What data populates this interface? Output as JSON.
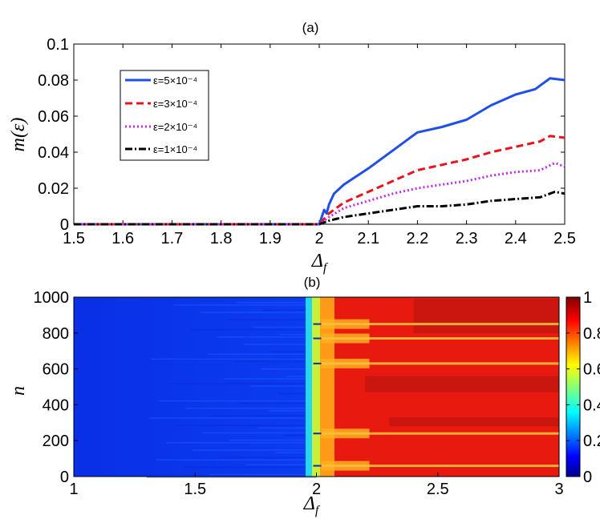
{
  "chart_data": [
    {
      "type": "line",
      "title": "(a)",
      "xlabel": "Δf",
      "ylabel": "m(ε)",
      "xlim": [
        1.5,
        2.5
      ],
      "ylim": [
        0,
        0.1
      ],
      "xticks": [
        "1.5",
        "1.6",
        "1.7",
        "1.8",
        "1.9",
        "2",
        "2.1",
        "2.2",
        "2.3",
        "2.4",
        "2.5"
      ],
      "yticks": [
        "0",
        "0.02",
        "0.04",
        "0.06",
        "0.08",
        "0.1"
      ],
      "legend_position": "top-left",
      "grid": false,
      "series": [
        {
          "name": "ε=5×10⁻⁴",
          "color": "#1f4fe8",
          "style": "solid",
          "x": [
            1.5,
            2.0,
            2.005,
            2.01,
            2.015,
            2.02,
            2.03,
            2.05,
            2.1,
            2.15,
            2.2,
            2.25,
            2.3,
            2.35,
            2.4,
            2.44,
            2.47,
            2.5
          ],
          "y": [
            0,
            0,
            0.004,
            0.008,
            0.006,
            0.011,
            0.017,
            0.022,
            0.031,
            0.041,
            0.051,
            0.054,
            0.058,
            0.066,
            0.072,
            0.075,
            0.081,
            0.08
          ]
        },
        {
          "name": "ε=3×10⁻⁴",
          "color": "#e8141c",
          "style": "dashed",
          "x": [
            1.5,
            2.0,
            2.02,
            2.05,
            2.1,
            2.15,
            2.2,
            2.25,
            2.3,
            2.35,
            2.4,
            2.45,
            2.47,
            2.5
          ],
          "y": [
            0,
            0,
            0.006,
            0.012,
            0.018,
            0.024,
            0.03,
            0.033,
            0.036,
            0.04,
            0.043,
            0.046,
            0.049,
            0.048
          ]
        },
        {
          "name": "ε=2×10⁻⁴",
          "color": "#c22ce8",
          "style": "dotted",
          "x": [
            1.5,
            2.0,
            2.02,
            2.05,
            2.1,
            2.15,
            2.2,
            2.25,
            2.3,
            2.35,
            2.4,
            2.45,
            2.48,
            2.5
          ],
          "y": [
            0,
            0,
            0.004,
            0.009,
            0.013,
            0.017,
            0.02,
            0.022,
            0.024,
            0.027,
            0.029,
            0.03,
            0.034,
            0.032
          ]
        },
        {
          "name": "ε=1×10⁻⁴",
          "color": "#000000",
          "style": "dashdot",
          "x": [
            1.5,
            2.0,
            2.02,
            2.05,
            2.1,
            2.15,
            2.2,
            2.25,
            2.3,
            2.35,
            2.4,
            2.45,
            2.48,
            2.5
          ],
          "y": [
            0,
            0,
            0.002,
            0.004,
            0.006,
            0.008,
            0.01,
            0.01,
            0.011,
            0.013,
            0.014,
            0.015,
            0.018,
            0.017
          ]
        }
      ]
    },
    {
      "type": "heatmap",
      "title": "(b)",
      "xlabel": "Δf",
      "ylabel": "n",
      "xlim": [
        1,
        3
      ],
      "ylim": [
        0,
        1000
      ],
      "xticks": [
        "1",
        "1.5",
        "2",
        "2.5",
        "3"
      ],
      "yticks": [
        "0",
        "200",
        "400",
        "600",
        "800",
        "1000"
      ],
      "colorbar": {
        "range": [
          0,
          1
        ],
        "ticks": [
          "0",
          "0.2",
          "0.4",
          "0.6",
          "0.8",
          "1"
        ],
        "colormap": "jet",
        "position": "right"
      },
      "transition_x": 2.0,
      "dark_bands_n": [
        60,
        240,
        630,
        770,
        850
      ],
      "description_values": {
        "left_region_value": 0.0,
        "right_region_value_range": [
          0.8,
          0.95
        ]
      }
    }
  ]
}
